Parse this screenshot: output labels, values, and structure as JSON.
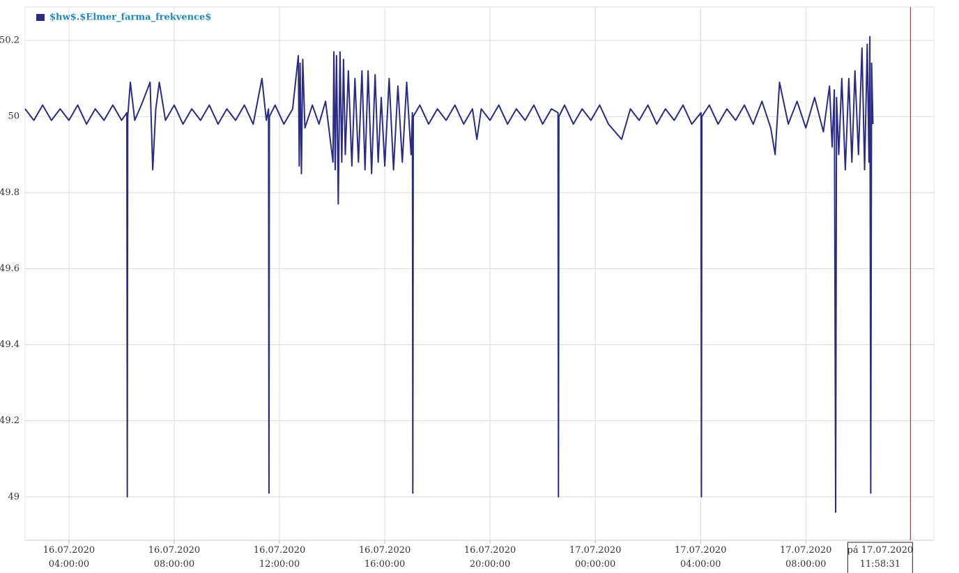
{
  "chart_data": {
    "type": "line",
    "legend": "top-left",
    "grid": true,
    "x": [
      "2020-07-16T02:20",
      "2020-07-16T02:40",
      "2020-07-16T03:00",
      "2020-07-16T03:20",
      "2020-07-16T03:40",
      "2020-07-16T04:00",
      "2020-07-16T04:20",
      "2020-07-16T04:40",
      "2020-07-16T05:00",
      "2020-07-16T05:20",
      "2020-07-16T05:40",
      "2020-07-16T06:00",
      "2020-07-16T06:12",
      "2020-07-16T06:13",
      "2020-07-16T06:14",
      "2020-07-16T06:20",
      "2020-07-16T06:30",
      "2020-07-16T06:45",
      "2020-07-16T07:05",
      "2020-07-16T07:11",
      "2020-07-16T07:18",
      "2020-07-16T07:26",
      "2020-07-16T07:40",
      "2020-07-16T08:00",
      "2020-07-16T08:20",
      "2020-07-16T08:40",
      "2020-07-16T09:00",
      "2020-07-16T09:20",
      "2020-07-16T09:40",
      "2020-07-16T10:00",
      "2020-07-16T10:20",
      "2020-07-16T10:40",
      "2020-07-16T11:00",
      "2020-07-16T11:20",
      "2020-07-16T11:30",
      "2020-07-16T11:35",
      "2020-07-16T11:36",
      "2020-07-16T11:37",
      "2020-07-16T11:50",
      "2020-07-16T12:10",
      "2020-07-16T12:30",
      "2020-07-16T12:43",
      "2020-07-16T12:45",
      "2020-07-16T12:47",
      "2020-07-16T12:50",
      "2020-07-16T12:53",
      "2020-07-16T12:58",
      "2020-07-16T13:15",
      "2020-07-16T13:30",
      "2020-07-16T13:45",
      "2020-07-16T14:02",
      "2020-07-16T14:04",
      "2020-07-16T14:07",
      "2020-07-16T14:10",
      "2020-07-16T14:14",
      "2020-07-16T14:18",
      "2020-07-16T14:22",
      "2020-07-16T14:26",
      "2020-07-16T14:30",
      "2020-07-16T14:37",
      "2020-07-16T14:45",
      "2020-07-16T14:52",
      "2020-07-16T15:00",
      "2020-07-16T15:08",
      "2020-07-16T15:15",
      "2020-07-16T15:22",
      "2020-07-16T15:30",
      "2020-07-16T15:38",
      "2020-07-16T15:45",
      "2020-07-16T15:52",
      "2020-07-16T16:00",
      "2020-07-16T16:10",
      "2020-07-16T16:20",
      "2020-07-16T16:30",
      "2020-07-16T16:40",
      "2020-07-16T16:50",
      "2020-07-16T17:00",
      "2020-07-16T17:03",
      "2020-07-16T17:04",
      "2020-07-16T17:05",
      "2020-07-16T17:20",
      "2020-07-16T17:40",
      "2020-07-16T18:00",
      "2020-07-16T18:20",
      "2020-07-16T18:40",
      "2020-07-16T19:00",
      "2020-07-16T19:20",
      "2020-07-16T19:30",
      "2020-07-16T19:40",
      "2020-07-16T20:00",
      "2020-07-16T20:20",
      "2020-07-16T20:40",
      "2020-07-16T21:00",
      "2020-07-16T21:20",
      "2020-07-16T21:40",
      "2020-07-16T22:00",
      "2020-07-16T22:20",
      "2020-07-16T22:35",
      "2020-07-16T22:36",
      "2020-07-16T22:37",
      "2020-07-16T22:50",
      "2020-07-16T23:10",
      "2020-07-16T23:30",
      "2020-07-16T23:50",
      "2020-07-17T00:10",
      "2020-07-17T00:30",
      "2020-07-17T01:00",
      "2020-07-17T01:20",
      "2020-07-17T01:40",
      "2020-07-17T02:00",
      "2020-07-17T02:20",
      "2020-07-17T02:40",
      "2020-07-17T03:00",
      "2020-07-17T03:20",
      "2020-07-17T03:40",
      "2020-07-17T04:01",
      "2020-07-17T04:02",
      "2020-07-17T04:03",
      "2020-07-17T04:20",
      "2020-07-17T04:40",
      "2020-07-17T05:00",
      "2020-07-17T05:20",
      "2020-07-17T05:40",
      "2020-07-17T06:00",
      "2020-07-17T06:20",
      "2020-07-17T06:40",
      "2020-07-17T06:50",
      "2020-07-17T07:00",
      "2020-07-17T07:20",
      "2020-07-17T07:40",
      "2020-07-17T08:00",
      "2020-07-17T08:20",
      "2020-07-17T08:40",
      "2020-07-17T08:54",
      "2020-07-17T09:00",
      "2020-07-17T09:05",
      "2020-07-17T09:08",
      "2020-07-17T09:10",
      "2020-07-17T09:15",
      "2020-07-17T09:22",
      "2020-07-17T09:30",
      "2020-07-17T09:38",
      "2020-07-17T09:45",
      "2020-07-17T09:52",
      "2020-07-17T10:00",
      "2020-07-17T10:08",
      "2020-07-17T10:14",
      "2020-07-17T10:20",
      "2020-07-17T10:24",
      "2020-07-17T10:26",
      "2020-07-17T10:28",
      "2020-07-17T10:30",
      "2020-07-17T10:33"
    ],
    "series": [
      {
        "name": "$hw$.$Elmer_farma_frekvence$",
        "color": "#2b2a86",
        "values": [
          50.02,
          49.99,
          50.03,
          49.99,
          50.02,
          49.99,
          50.03,
          49.98,
          50.02,
          49.99,
          50.03,
          49.99,
          50.01,
          49.0,
          50.0,
          50.09,
          49.99,
          50.03,
          50.09,
          49.86,
          50.02,
          50.09,
          49.99,
          50.03,
          49.98,
          50.02,
          49.99,
          50.03,
          49.98,
          50.02,
          49.99,
          50.03,
          49.98,
          50.1,
          49.99,
          50.02,
          49.01,
          50.0,
          50.03,
          49.98,
          50.02,
          50.16,
          49.87,
          50.14,
          49.85,
          50.15,
          49.97,
          50.03,
          49.98,
          50.04,
          49.88,
          50.17,
          49.86,
          50.16,
          49.77,
          50.17,
          49.88,
          50.15,
          49.9,
          50.12,
          49.87,
          50.1,
          49.88,
          50.12,
          49.86,
          50.12,
          49.85,
          50.11,
          49.88,
          50.05,
          49.87,
          50.1,
          49.86,
          50.08,
          49.88,
          50.09,
          49.9,
          50.01,
          49.01,
          50.0,
          50.03,
          49.98,
          50.02,
          49.99,
          50.03,
          49.98,
          50.02,
          49.94,
          50.02,
          49.99,
          50.03,
          49.98,
          50.02,
          49.99,
          50.03,
          49.98,
          50.02,
          50.01,
          49.0,
          50.0,
          50.03,
          49.98,
          50.02,
          49.99,
          50.03,
          49.98,
          49.94,
          50.02,
          49.99,
          50.03,
          49.98,
          50.02,
          49.99,
          50.03,
          49.98,
          50.01,
          49.0,
          50.0,
          50.03,
          49.98,
          50.02,
          49.99,
          50.03,
          49.98,
          50.04,
          49.97,
          49.9,
          50.09,
          49.98,
          50.04,
          49.97,
          50.05,
          49.96,
          50.08,
          49.92,
          50.07,
          48.96,
          50.05,
          49.9,
          50.1,
          49.86,
          50.1,
          49.88,
          50.12,
          49.9,
          50.18,
          49.86,
          50.19,
          49.88,
          50.21,
          49.01,
          50.14,
          49.98
        ]
      }
    ],
    "xlim": [
      "2020-07-16T02:20",
      "2020-07-17T12:52"
    ],
    "xticks": [
      {
        "value": "2020-07-16T04:00",
        "label": [
          "16.07.2020",
          "04:00:00"
        ]
      },
      {
        "value": "2020-07-16T08:00",
        "label": [
          "16.07.2020",
          "08:00:00"
        ]
      },
      {
        "value": "2020-07-16T12:00",
        "label": [
          "16.07.2020",
          "12:00:00"
        ]
      },
      {
        "value": "2020-07-16T16:00",
        "label": [
          "16.07.2020",
          "16:00:00"
        ]
      },
      {
        "value": "2020-07-16T20:00",
        "label": [
          "16.07.2020",
          "20:00:00"
        ]
      },
      {
        "value": "2020-07-17T00:00",
        "label": [
          "17.07.2020",
          "00:00:00"
        ]
      },
      {
        "value": "2020-07-17T04:00",
        "label": [
          "17.07.2020",
          "04:00:00"
        ]
      },
      {
        "value": "2020-07-17T08:00",
        "label": [
          "17.07.2020",
          "08:00:00"
        ]
      }
    ],
    "ylim": [
      48.886,
      50.288
    ],
    "yticks": [
      49,
      49.2,
      49.4,
      49.6,
      49.8,
      50,
      50.2
    ],
    "cursor": {
      "x": "2020-07-17T11:58:31",
      "label": [
        "pá 17.07.2020",
        "11:58:31"
      ],
      "color": "#a01818"
    }
  }
}
